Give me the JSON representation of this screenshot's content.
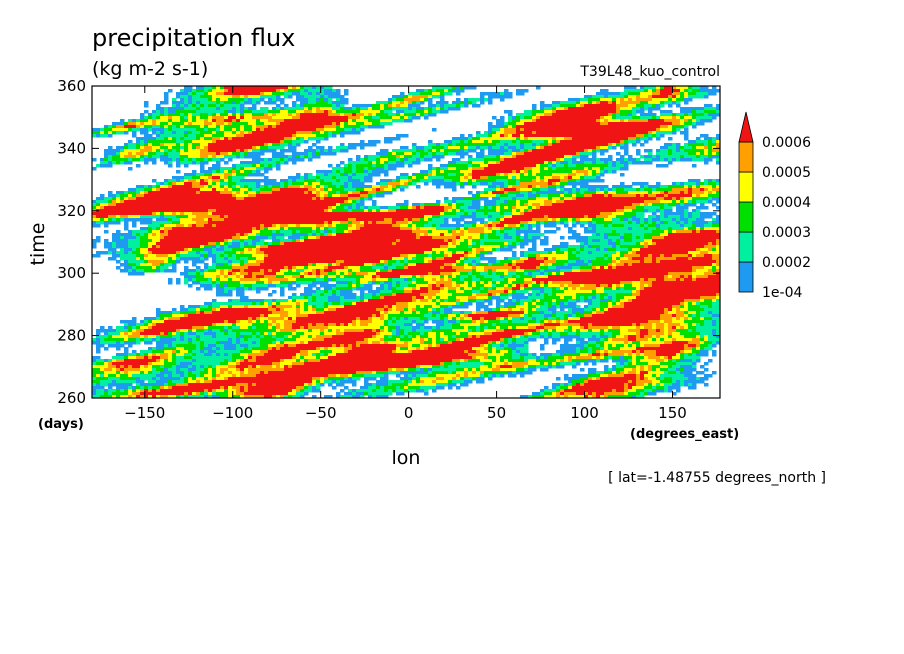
{
  "chart_data": {
    "type": "heatmap",
    "title": "precipitation flux",
    "units": "(kg m-2 s-1)",
    "run_label": "T39L48_kuo_control",
    "xlabel": "lon",
    "ylabel": "time",
    "x_units": "(degrees_east)",
    "y_units": "(days)",
    "xlim": [
      -180,
      177
    ],
    "ylim": [
      260,
      360
    ],
    "x_ticks": [
      -150,
      -100,
      -50,
      0,
      50,
      100,
      150
    ],
    "x_tick_labels": [
      "−150",
      "−100",
      "−50",
      "0",
      "50",
      "100",
      "150"
    ],
    "y_ticks": [
      260,
      280,
      300,
      320,
      340,
      360
    ],
    "y_tick_labels": [
      "260",
      "280",
      "300",
      "320",
      "340",
      "360"
    ],
    "colorbar": {
      "levels": [
        0.0001,
        0.0002,
        0.0003,
        0.0004,
        0.0005,
        0.0006
      ],
      "labels": [
        "1e-04",
        "0.0002",
        "0.0003",
        "0.0004",
        "0.0005",
        "0.0006"
      ],
      "colors": [
        "#1e9bf0",
        "#00f0a0",
        "#00e000",
        "#ffff00",
        "#ffa000",
        "#f01414"
      ],
      "extend": "max"
    },
    "annotation": "[ lat=-1.48755 degrees_north ]"
  }
}
